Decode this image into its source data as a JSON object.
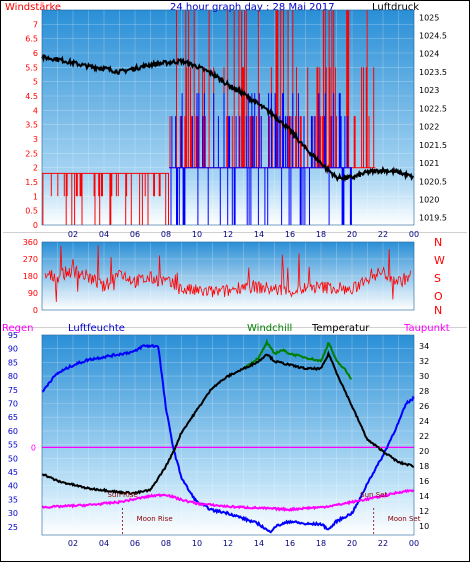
{
  "chart_data": [
    {
      "type": "line",
      "title": "24 hour graph day : 28 Mai 2017",
      "left_axis_label": "Windstärke",
      "right_axis_label": "Luftdruck",
      "x_tick_labels": [
        "02",
        "04",
        "06",
        "08",
        "10",
        "12",
        "14",
        "16",
        "18",
        "20",
        "22",
        "00"
      ],
      "left_ticks": [
        "0",
        "0.5",
        "1",
        "1.5",
        "2",
        "2.5",
        "3",
        "3.5",
        "4",
        "4.5",
        "5",
        "5.5",
        "6",
        "6.5",
        "7"
      ],
      "right_ticks": [
        "1019.5",
        "1020",
        "1020.5",
        "1021",
        "1021.5",
        "1022",
        "1022.5",
        "1023",
        "1023.5",
        "1024",
        "1024.5",
        "1025"
      ],
      "ylim_left": [
        0,
        7.5
      ],
      "ylim_right": [
        1019.3,
        1025.2
      ],
      "x_range_hours": [
        0,
        24
      ],
      "series": [
        {
          "name": "wind_gust",
          "color": "#ff0000",
          "segments": [
            {
              "x0": 0.0,
              "x1": 8.2,
              "base": 1.8,
              "spike_to": [
                0.0,
                1.0,
                1.8
              ]
            },
            {
              "x0": 8.2,
              "x1": 21.5,
              "base": 2.0,
              "spike_to": [
                3.8,
                5.5,
                7.5
              ]
            }
          ]
        },
        {
          "name": "wind_avg",
          "color": "#0000ff",
          "segments": [
            {
              "x0": 8.2,
              "x1": 20.0,
              "base": 2.0,
              "spike_to": [
                0.0,
                3.8,
                4.6
              ]
            }
          ]
        },
        {
          "name": "pressure",
          "color": "#000000",
          "axis": "right",
          "x": [
            0,
            1,
            2,
            3,
            4,
            5,
            6,
            7,
            8,
            9,
            10,
            11,
            12,
            13,
            14,
            15,
            16,
            17,
            18,
            19,
            20,
            21,
            22,
            23,
            24
          ],
          "y": [
            1023.9,
            1023.85,
            1023.75,
            1023.65,
            1023.6,
            1023.5,
            1023.6,
            1023.7,
            1023.75,
            1023.8,
            1023.65,
            1023.45,
            1023.15,
            1022.9,
            1022.6,
            1022.3,
            1021.9,
            1021.4,
            1021.0,
            1020.6,
            1020.6,
            1020.75,
            1020.8,
            1020.75,
            1020.6
          ]
        }
      ]
    },
    {
      "type": "line",
      "compass_labels": [
        "N",
        "W",
        "S",
        "O",
        "N"
      ],
      "ticks": [
        "0",
        "90",
        "180",
        "270",
        "360"
      ],
      "ylim": [
        0,
        360
      ],
      "series": [
        {
          "name": "wind_direction",
          "color": "#ff0000",
          "x": [
            0,
            1,
            2,
            3,
            4,
            5,
            6,
            7,
            8,
            9,
            10,
            11,
            12,
            13,
            14,
            15,
            16,
            17,
            18,
            19,
            20,
            21,
            22,
            23,
            23.8
          ],
          "y": [
            180,
            180,
            210,
            175,
            120,
            200,
            150,
            170,
            150,
            110,
            100,
            95,
            100,
            130,
            120,
            110,
            100,
            115,
            120,
            120,
            100,
            180,
            200,
            150,
            180
          ]
        }
      ]
    },
    {
      "type": "line",
      "legend": [
        "Regen",
        "Luftfeuchte",
        "Windchill",
        "Temperatur",
        "Taupunkt"
      ],
      "left_ticks": [
        "25",
        "30",
        "35",
        "40",
        "45",
        "50",
        "55",
        "60",
        "65",
        "70",
        "75",
        "80",
        "85",
        "90",
        "95"
      ],
      "right_ticks": [
        "10",
        "12",
        "14",
        "16",
        "18",
        "20",
        "22",
        "24",
        "26",
        "28",
        "30",
        "32",
        "34"
      ],
      "ylim_left": [
        22,
        95
      ],
      "ylim_right": [
        8.8,
        35.5
      ],
      "rain_zero_label": "0",
      "annotations": [
        {
          "text": "Sun Rise",
          "x": 5.2,
          "color": "#8b0000",
          "row": "upper"
        },
        {
          "text": "Moon Rise",
          "x": 5.2,
          "color": "#8b0000",
          "row": "lower"
        },
        {
          "text": "Sun Set",
          "x": 21.4,
          "color": "#8b0000",
          "row": "upper"
        },
        {
          "text": "Moon Set",
          "x": 21.4,
          "color": "#8b0000",
          "row": "lower"
        }
      ],
      "series": [
        {
          "name": "Regen",
          "color": "#ff00ff",
          "x": [
            0,
            24
          ],
          "y": [
            20.5,
            20.5
          ],
          "axis": "right"
        },
        {
          "name": "Luftfeuchte",
          "color": "#0000ff",
          "axis": "left",
          "x": [
            0,
            0.5,
            1,
            2,
            3,
            4,
            5,
            6,
            6.5,
            7,
            7.5,
            8,
            8.5,
            9,
            9.5,
            10,
            11,
            12,
            13,
            14,
            14.7,
            15,
            16,
            17,
            18,
            18.5,
            19,
            20,
            20.5,
            21,
            22,
            23,
            23.5,
            24
          ],
          "y": [
            74,
            78,
            81,
            84,
            86,
            87,
            88,
            89,
            91,
            91,
            91,
            68,
            53,
            43,
            38,
            34,
            31,
            30,
            28,
            26,
            23,
            25,
            27,
            26,
            26,
            24,
            27,
            30,
            35,
            41,
            51,
            63,
            70,
            72
          ]
        },
        {
          "name": "Windchill",
          "color": "#008000",
          "axis": "right",
          "x": [
            13,
            14,
            14.5,
            15,
            15.5,
            16,
            17,
            18,
            18.5,
            19,
            19.5,
            20
          ],
          "y": [
            31.0,
            32.5,
            34.5,
            33.0,
            33.5,
            33.0,
            32.5,
            32.0,
            34.5,
            32.0,
            31.0,
            29.5
          ]
        },
        {
          "name": "Temperatur",
          "color": "#000000",
          "axis": "right",
          "x": [
            0,
            1,
            2,
            3,
            4,
            5,
            6,
            7,
            8,
            8.5,
            9,
            10,
            11,
            12,
            13,
            14,
            14.5,
            15,
            16,
            17,
            18,
            18.5,
            19,
            20,
            21,
            22,
            23,
            24
          ],
          "y": [
            17.0,
            16.0,
            15.5,
            15.0,
            14.8,
            14.5,
            14.4,
            14.8,
            18.0,
            20.0,
            22.5,
            25.5,
            28.5,
            30.0,
            31.0,
            32.0,
            33.0,
            32.0,
            31.5,
            31.0,
            31.0,
            33.0,
            30.5,
            26.0,
            21.5,
            20.0,
            18.5,
            18.0
          ]
        },
        {
          "name": "Taupunkt",
          "color": "#ff00ff",
          "axis": "right",
          "x": [
            0,
            1,
            2,
            3,
            4,
            5,
            6,
            7,
            8,
            9,
            10,
            11,
            12,
            13,
            14,
            15,
            16,
            17,
            18,
            19,
            20,
            21,
            22,
            23,
            24
          ],
          "y": [
            12.5,
            12.6,
            12.7,
            12.8,
            13.0,
            13.2,
            13.6,
            14.0,
            14.2,
            13.5,
            13.0,
            12.8,
            12.6,
            12.5,
            12.4,
            12.3,
            12.2,
            12.4,
            12.5,
            12.8,
            13.2,
            13.6,
            14.0,
            14.5,
            14.8
          ]
        }
      ]
    }
  ]
}
